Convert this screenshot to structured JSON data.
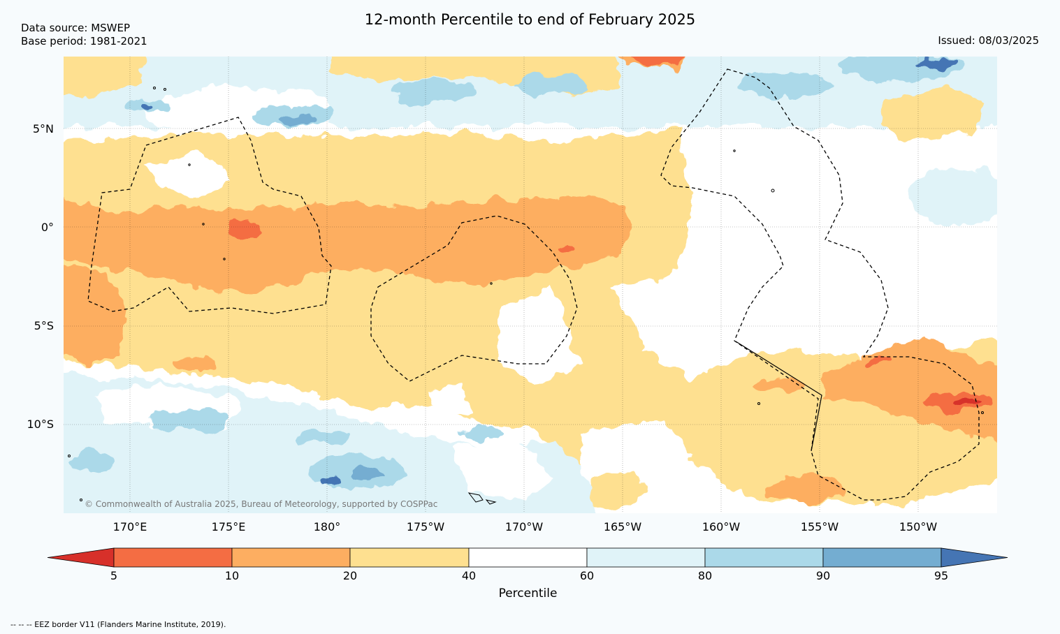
{
  "header": {
    "title": "12-month Percentile to end of February 2025",
    "data_source": "Data source: MSWEP",
    "base_period": "Base period: 1981-2021",
    "issued": "Issued: 08/03/2025"
  },
  "map": {
    "lat_labels": [
      "5°N",
      "0°",
      "5°S",
      "10°S"
    ],
    "lon_labels": [
      "170°E",
      "175°E",
      "180°",
      "175°W",
      "170°W",
      "165°W",
      "160°W",
      "155°W",
      "150°W"
    ],
    "copyright": "© Commonwealth of Australia 2025, Bureau of Meteorology, supported by COSPPac",
    "extent": {
      "lon_min": 166.7,
      "lon_max": 213.9,
      "lat_min": -14.5,
      "lat_max": 8.5
    }
  },
  "colorbar": {
    "ticks": [
      "5",
      "10",
      "20",
      "40",
      "60",
      "80",
      "90",
      "95"
    ],
    "label": "Percentile",
    "colors": {
      "below_5": "#d7302a",
      "5_10": "#f46d43",
      "10_20": "#fdae61",
      "20_40": "#fee090",
      "40_60": "#ffffff",
      "60_80": "#e0f3f8",
      "80_90": "#abd9e9",
      "90_95": "#74add1",
      "above_95": "#4575b4"
    }
  },
  "footer": {
    "legend": "--  --  -- EEZ border V11 (Flanders Marine Institute, 2019)."
  }
}
